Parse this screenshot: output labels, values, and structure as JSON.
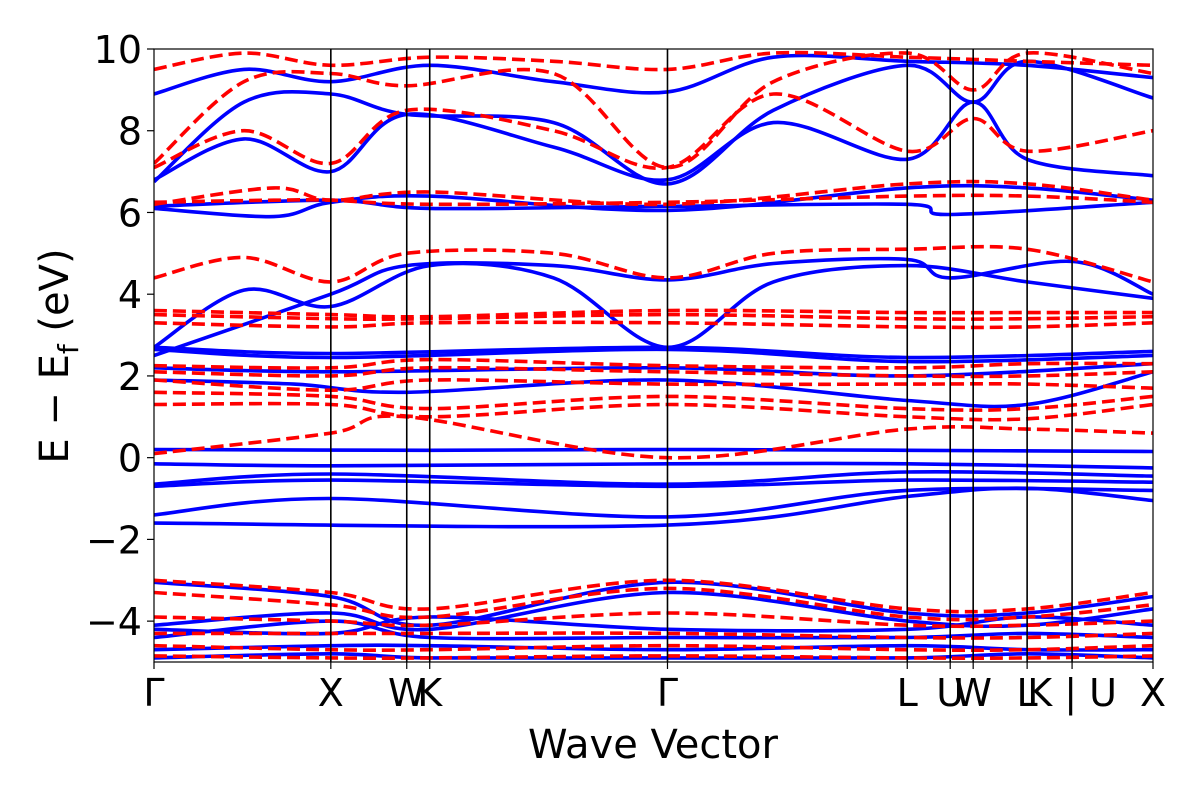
{
  "chart_data": {
    "type": "line",
    "xlabel": "Wave Vector",
    "ylabel_main": "E − E",
    "ylabel_sub": "f",
    "ylabel_unit": " (eV)",
    "ylim": [
      -5,
      10
    ],
    "yticks": [
      -4,
      -2,
      0,
      2,
      4,
      6,
      8,
      10
    ],
    "ytick_labels": [
      "−4",
      "−2",
      "0",
      "2",
      "4",
      "6",
      "8",
      "10"
    ],
    "xlim": [
      0,
      1
    ],
    "grid": false,
    "legend": "none",
    "colors": {
      "series_1": "#0000ff",
      "series_2": "#ff0000",
      "axes": "#000000",
      "kpath": "#000000"
    },
    "kpoints": [
      {
        "label": "Γ",
        "x": 0.0
      },
      {
        "label": "X",
        "x": 0.177
      },
      {
        "label": "W",
        "x": 0.253
      },
      {
        "label": "K",
        "x": 0.276
      },
      {
        "label": "Γ",
        "x": 0.514
      },
      {
        "label": "L",
        "x": 0.754
      },
      {
        "label": "U",
        "x": 0.797
      },
      {
        "label": "W",
        "x": 0.82
      },
      {
        "label": "L",
        "x": 0.874
      },
      {
        "label": "K | U",
        "x": 0.919
      },
      {
        "label": "X",
        "x": 1.0
      }
    ],
    "series": [
      {
        "style": "solid",
        "color": "#0000ff",
        "bands": [
          [
            0,
            -1.6,
            0.514,
            -1.65,
            0.754,
            -0.95,
            0.874,
            -0.75,
            1.0,
            -1.05
          ],
          [
            0,
            -1.4,
            0.177,
            -1.0,
            0.514,
            -1.45,
            0.754,
            -0.8,
            1.0,
            -0.8
          ],
          [
            0,
            -0.7,
            0.177,
            -0.55,
            0.514,
            -0.7,
            0.754,
            -0.55,
            1.0,
            -0.6
          ],
          [
            0,
            -0.65,
            0.177,
            -0.4,
            0.514,
            -0.65,
            0.754,
            -0.35,
            1.0,
            -0.45
          ],
          [
            0,
            -0.15,
            0.177,
            -0.2,
            0.514,
            -0.15,
            0.754,
            -0.15,
            1.0,
            -0.25
          ],
          [
            0,
            0.2,
            0.276,
            0.18,
            0.514,
            0.2,
            0.754,
            0.18,
            1.0,
            0.15
          ],
          [
            0,
            2.7,
            0.177,
            2.55,
            0.514,
            2.7,
            0.754,
            2.45,
            1.0,
            2.6
          ],
          [
            0,
            2.65,
            0.177,
            2.45,
            0.514,
            2.65,
            0.754,
            2.35,
            1.0,
            2.5
          ],
          [
            0,
            1.9,
            0.14,
            1.8,
            0.253,
            1.6,
            0.514,
            1.9,
            0.754,
            1.4,
            0.874,
            1.3,
            1.0,
            2.1
          ],
          [
            0,
            2.2,
            0.177,
            2.1,
            0.514,
            2.2,
            0.754,
            2.0,
            1.0,
            2.3
          ],
          [
            0,
            2.7,
            0.09,
            4.1,
            0.177,
            3.7,
            0.276,
            4.7,
            0.4,
            4.4,
            0.514,
            2.7,
            0.62,
            4.3,
            0.754,
            4.7,
            0.874,
            4.3,
            1.0,
            3.9
          ],
          [
            0,
            2.5,
            0.177,
            4.0,
            0.253,
            4.7,
            0.4,
            4.7,
            0.514,
            4.35,
            0.62,
            4.75,
            0.754,
            4.85,
            0.797,
            4.4,
            0.92,
            4.8,
            1.0,
            4.0
          ],
          [
            0,
            6.15,
            0.177,
            6.3,
            0.276,
            6.1,
            0.514,
            6.15,
            0.754,
            6.2,
            0.797,
            5.95,
            1.0,
            6.25
          ],
          [
            0,
            6.1,
            0.12,
            5.9,
            0.177,
            6.25,
            0.276,
            6.4,
            0.514,
            6.05,
            0.754,
            6.6,
            0.874,
            6.6,
            1.0,
            6.3
          ],
          [
            0,
            6.8,
            0.09,
            7.8,
            0.177,
            7.0,
            0.253,
            8.4,
            0.4,
            7.6,
            0.514,
            6.8,
            0.62,
            8.2,
            0.754,
            7.3,
            0.82,
            8.7,
            0.874,
            7.3,
            1.0,
            6.9
          ],
          [
            0,
            6.75,
            0.09,
            8.7,
            0.177,
            8.9,
            0.253,
            8.4,
            0.4,
            8.2,
            0.514,
            6.7,
            0.62,
            8.5,
            0.754,
            9.6,
            0.82,
            8.7,
            0.874,
            9.7,
            1.0,
            8.8
          ],
          [
            0,
            8.9,
            0.09,
            9.5,
            0.177,
            9.2,
            0.276,
            9.6,
            0.4,
            9.2,
            0.514,
            8.95,
            0.62,
            9.8,
            0.754,
            9.7,
            0.874,
            9.6,
            1.0,
            9.3
          ],
          [
            0,
            -3.05,
            0.177,
            -3.4,
            0.276,
            -4.1,
            0.514,
            -3.05,
            0.754,
            -3.8,
            0.874,
            -3.8,
            1.0,
            -3.4
          ],
          [
            0,
            -4.1,
            0.177,
            -3.8,
            0.276,
            -4.2,
            0.514,
            -3.3,
            0.754,
            -4.0,
            0.874,
            -4.1,
            1.0,
            -3.7
          ],
          [
            0,
            -4.2,
            0.177,
            -4.3,
            0.276,
            -3.9,
            0.514,
            -4.2,
            0.754,
            -4.2,
            0.874,
            -3.9,
            1.0,
            -4.1
          ],
          [
            0,
            -4.4,
            0.177,
            -4.0,
            0.276,
            -4.4,
            0.514,
            -4.4,
            0.754,
            -4.4,
            0.874,
            -4.3,
            1.0,
            -4.4
          ],
          [
            0,
            -4.7,
            0.177,
            -4.6,
            0.276,
            -4.6,
            0.514,
            -4.7,
            0.754,
            -4.6,
            0.874,
            -4.7,
            1.0,
            -4.7
          ],
          [
            0,
            -4.9,
            0.177,
            -4.8,
            0.276,
            -4.9,
            0.514,
            -4.9,
            0.754,
            -4.9,
            0.874,
            -4.8,
            1.0,
            -4.9
          ]
        ]
      },
      {
        "style": "dashed",
        "color": "#ff0000",
        "bands": [
          [
            0,
            0.1,
            0.177,
            0.6,
            0.253,
            1.0,
            0.514,
            0.0,
            0.754,
            0.7,
            0.874,
            0.7,
            1.0,
            0.6
          ],
          [
            0,
            1.3,
            0.177,
            1.3,
            0.276,
            1.0,
            0.514,
            1.3,
            0.754,
            1.0,
            0.874,
            0.95,
            1.0,
            1.3
          ],
          [
            0,
            1.6,
            0.177,
            1.5,
            0.276,
            1.2,
            0.514,
            1.5,
            0.754,
            1.2,
            0.874,
            1.2,
            1.0,
            1.5
          ],
          [
            0,
            1.9,
            0.177,
            1.65,
            0.276,
            1.9,
            0.514,
            1.8,
            0.754,
            1.8,
            0.874,
            1.8,
            1.0,
            1.7
          ],
          [
            0,
            2.1,
            0.177,
            2.0,
            0.276,
            2.2,
            0.514,
            2.1,
            0.754,
            2.0,
            0.874,
            2.0,
            1.0,
            2.1
          ],
          [
            0,
            2.25,
            0.177,
            2.2,
            0.276,
            2.4,
            0.514,
            2.25,
            0.754,
            2.2,
            0.874,
            2.3,
            1.0,
            2.3
          ],
          [
            0,
            3.3,
            0.177,
            3.2,
            0.276,
            3.3,
            0.514,
            3.3,
            0.754,
            3.2,
            0.874,
            3.2,
            1.0,
            3.3
          ],
          [
            0,
            3.5,
            0.177,
            3.4,
            0.276,
            3.4,
            0.514,
            3.5,
            0.754,
            3.4,
            0.874,
            3.4,
            1.0,
            3.45
          ],
          [
            0,
            3.6,
            0.177,
            3.5,
            0.276,
            3.45,
            0.514,
            3.6,
            0.754,
            3.55,
            0.874,
            3.55,
            1.0,
            3.55
          ],
          [
            0,
            4.4,
            0.09,
            4.9,
            0.177,
            4.3,
            0.253,
            5.0,
            0.4,
            5.0,
            0.514,
            4.4,
            0.62,
            5.0,
            0.754,
            5.1,
            0.874,
            5.1,
            1.0,
            4.3
          ],
          [
            0,
            6.2,
            0.12,
            6.6,
            0.177,
            6.3,
            0.276,
            6.5,
            0.514,
            6.2,
            0.754,
            6.7,
            0.874,
            6.7,
            1.0,
            6.3
          ],
          [
            0,
            6.25,
            0.12,
            6.3,
            0.177,
            6.3,
            0.276,
            6.2,
            0.514,
            6.25,
            0.754,
            6.4,
            0.874,
            6.4,
            1.0,
            6.25
          ],
          [
            0,
            7.1,
            0.09,
            8.0,
            0.177,
            7.2,
            0.253,
            8.5,
            0.4,
            8.0,
            0.514,
            7.1,
            0.62,
            8.9,
            0.754,
            7.5,
            0.82,
            8.3,
            0.874,
            7.5,
            1.0,
            8.0
          ],
          [
            0,
            7.2,
            0.09,
            9.2,
            0.177,
            9.4,
            0.253,
            9.1,
            0.4,
            9.4,
            0.514,
            7.1,
            0.62,
            9.2,
            0.754,
            9.9,
            0.82,
            9.0,
            0.874,
            9.9,
            1.0,
            9.4
          ],
          [
            0,
            9.5,
            0.09,
            9.9,
            0.177,
            9.6,
            0.276,
            9.8,
            0.4,
            9.7,
            0.514,
            9.5,
            0.62,
            9.9,
            0.754,
            9.8,
            0.874,
            9.7,
            1.0,
            9.6
          ],
          [
            0,
            -3.0,
            0.177,
            -3.3,
            0.276,
            -3.7,
            0.514,
            -3.0,
            0.754,
            -3.7,
            0.874,
            -3.7,
            1.0,
            -3.3
          ],
          [
            0,
            -3.3,
            0.177,
            -3.6,
            0.276,
            -3.9,
            0.514,
            -3.2,
            0.754,
            -3.9,
            0.874,
            -3.9,
            1.0,
            -3.6
          ],
          [
            0,
            -3.9,
            0.177,
            -4.0,
            0.276,
            -4.1,
            0.514,
            -3.8,
            0.754,
            -4.1,
            0.874,
            -4.1,
            1.0,
            -4.0
          ],
          [
            0,
            -4.3,
            0.177,
            -4.3,
            0.276,
            -4.3,
            0.514,
            -4.3,
            0.754,
            -4.4,
            0.874,
            -4.4,
            1.0,
            -4.3
          ],
          [
            0,
            -4.6,
            0.177,
            -4.7,
            0.276,
            -4.7,
            0.514,
            -4.6,
            0.754,
            -4.7,
            0.874,
            -4.7,
            1.0,
            -4.6
          ],
          [
            0,
            -4.85,
            0.177,
            -4.9,
            0.276,
            -4.9,
            0.514,
            -4.85,
            0.754,
            -4.9,
            0.874,
            -4.9,
            1.0,
            -4.85
          ]
        ]
      }
    ]
  }
}
